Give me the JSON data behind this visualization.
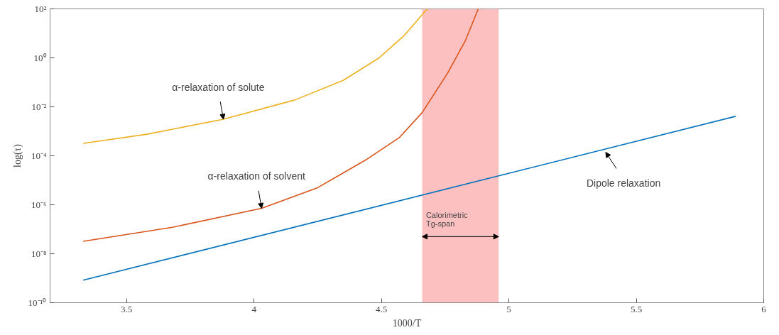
{
  "chart_data": {
    "type": "line",
    "xlabel": "1000/T",
    "ylabel": "log(τ)",
    "log": "y",
    "grid": false,
    "line_style": "solid",
    "marker": "none",
    "xlim": [
      3.2,
      6
    ],
    "xticks": [
      3.5,
      4,
      4.5,
      5,
      5.5,
      6
    ],
    "ylim": [
      1e-10,
      100
    ],
    "yticks": [
      {
        "value": 1e-10,
        "label": "10⁻¹⁰"
      },
      {
        "value": 1e-08,
        "label": "10⁻⁸"
      },
      {
        "value": 1e-06,
        "label": "10⁻⁶"
      },
      {
        "value": 0.0001,
        "label": "10⁻⁴"
      },
      {
        "value": 0.01,
        "label": "10⁻²"
      },
      {
        "value": 1,
        "label": "10⁰"
      },
      {
        "value": 100,
        "label": "10²"
      }
    ],
    "series": [
      {
        "color": "#0072bd",
        "x": [
          3.33,
          5.89
        ],
        "values": [
          8.3e-10,
          0.0041
        ]
      },
      {
        "color": "#d95319",
        "x": [
          3.33,
          3.68,
          4.03,
          4.25,
          4.44,
          4.57,
          4.66,
          4.76,
          4.83,
          4.88
        ],
        "values": [
          3.2e-08,
          1.2e-07,
          7.2e-07,
          5e-06,
          6.9e-05,
          0.00055,
          0.0058,
          0.24,
          5.2,
          100
        ]
      },
      {
        "color": "#edb120",
        "x": [
          3.33,
          3.58,
          3.88,
          4.16,
          4.35,
          4.49,
          4.59,
          4.68
        ],
        "values": [
          0.00032,
          0.00076,
          0.0031,
          0.019,
          0.12,
          0.98,
          8.3,
          100
        ]
      }
    ],
    "bands": [
      {
        "axis": "x",
        "from": 4.66,
        "to": 4.96,
        "label": "Calorimetric\nTg-span",
        "color": "#fcb0b2"
      }
    ],
    "annotations": [
      {
        "text": "α-relaxation of solute",
        "x": 3.88,
        "y": 0.0031
      },
      {
        "text": "α-relaxation of solvent",
        "x": 4.03,
        "y": 7.2e-07
      },
      {
        "text": "Dipole relaxation",
        "x": 5.38,
        "y": 0.00014
      }
    ]
  }
}
